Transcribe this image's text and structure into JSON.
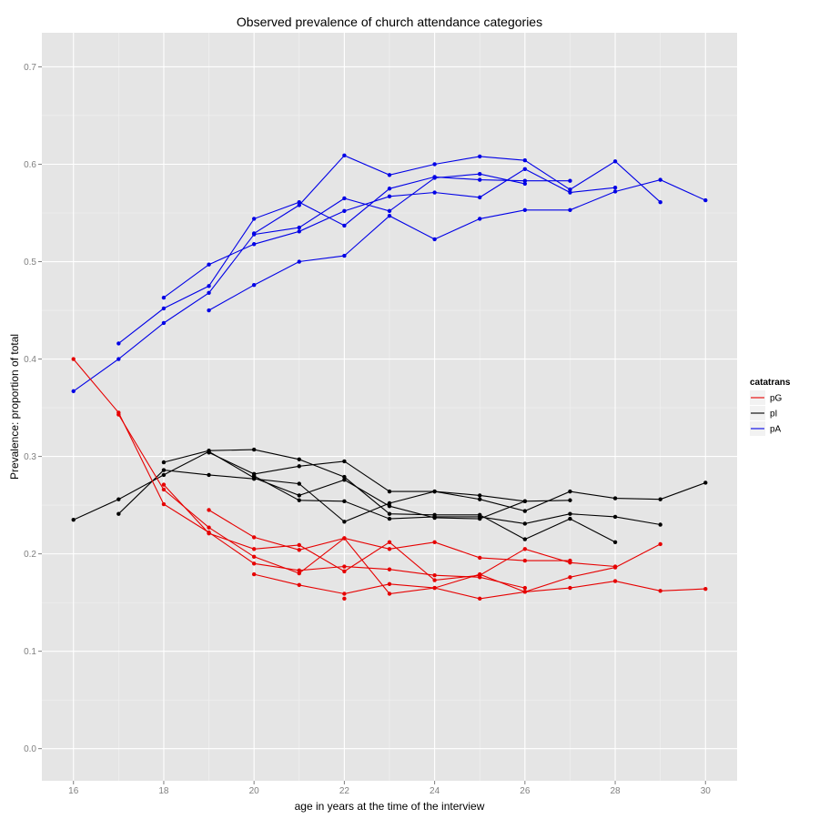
{
  "chart_data": {
    "type": "line",
    "title": "Observed prevalence of church attendance categories",
    "xlabel": "age in years at the time of the interview",
    "ylabel": "Prevalence: proportion of total",
    "xlim": [
      15.3,
      30.7
    ],
    "ylim": [
      -0.033,
      0.735
    ],
    "x_ticks": [
      16,
      18,
      20,
      22,
      24,
      26,
      28,
      30
    ],
    "y_ticks": [
      0.0,
      0.1,
      0.2,
      0.3,
      0.4,
      0.5,
      0.6,
      0.7
    ],
    "y_tick_labels": [
      "0.0",
      "0.1",
      "0.2",
      "0.3",
      "0.4",
      "0.5",
      "0.6",
      "0.7"
    ],
    "grid": true,
    "legend": {
      "title": "catatrans",
      "position": "right",
      "entries": [
        {
          "label": "pG",
          "color": "#e60000"
        },
        {
          "label": "pI",
          "color": "#000000"
        },
        {
          "label": "pA",
          "color": "#0000e6"
        }
      ]
    },
    "series": [
      {
        "group": "pA",
        "color": "#0000e6",
        "x": [
          16,
          17,
          18,
          19,
          20,
          21,
          22,
          23,
          24,
          25,
          26
        ],
        "y": [
          0.367,
          0.4,
          0.437,
          0.468,
          0.528,
          0.535,
          0.565,
          0.552,
          0.586,
          0.59,
          0.58
        ]
      },
      {
        "group": "pA",
        "color": "#0000e6",
        "x": [
          17,
          18,
          19,
          20,
          21,
          22,
          23,
          24,
          25,
          26,
          27
        ],
        "y": [
          0.416,
          0.452,
          0.475,
          0.544,
          0.561,
          0.537,
          0.575,
          0.587,
          0.584,
          0.583,
          0.583
        ]
      },
      {
        "group": "pA",
        "color": "#0000e6",
        "x": [
          18,
          19,
          20,
          21,
          22,
          23,
          24,
          25,
          26,
          27,
          28
        ],
        "y": [
          0.463,
          0.497,
          0.518,
          0.531,
          0.552,
          0.567,
          0.571,
          0.566,
          0.595,
          0.571,
          0.576
        ]
      },
      {
        "group": "pA",
        "color": "#0000e6",
        "x": [
          19,
          20,
          21,
          22,
          23,
          24,
          25,
          26,
          27,
          28,
          29,
          30
        ],
        "y": [
          0.45,
          0.476,
          0.5,
          0.506,
          0.547,
          0.523,
          0.544,
          0.553,
          0.553,
          0.572,
          0.584,
          0.563
        ]
      },
      {
        "group": "pA",
        "color": "#0000e6",
        "x": [
          20,
          21,
          22,
          23,
          24,
          25,
          26,
          27,
          28,
          29
        ],
        "y": [
          0.529,
          0.558,
          0.609,
          0.589,
          0.6,
          0.608,
          0.604,
          0.574,
          0.603,
          0.561
        ]
      },
      {
        "group": "pI",
        "color": "#000000",
        "x": [
          16,
          17,
          18,
          19,
          20,
          21,
          22,
          23,
          24,
          25,
          26
        ],
        "y": [
          0.235,
          0.256,
          0.281,
          0.305,
          0.278,
          0.26,
          0.276,
          0.249,
          0.237,
          0.236,
          0.254
        ]
      },
      {
        "group": "pI",
        "color": "#000000",
        "x": [
          17,
          18,
          19,
          20,
          21,
          22,
          23,
          24,
          25,
          26,
          27
        ],
        "y": [
          0.241,
          0.286,
          0.281,
          0.277,
          0.272,
          0.233,
          0.252,
          0.264,
          0.26,
          0.254,
          0.255
        ]
      },
      {
        "group": "pI",
        "color": "#000000",
        "x": [
          18,
          19,
          20,
          21,
          22,
          23,
          24,
          25,
          26,
          27,
          28
        ],
        "y": [
          0.294,
          0.306,
          0.307,
          0.297,
          0.279,
          0.241,
          0.24,
          0.24,
          0.215,
          0.236,
          0.212
        ]
      },
      {
        "group": "pI",
        "color": "#000000",
        "x": [
          19,
          20,
          21,
          22,
          23,
          24,
          25,
          26,
          27,
          28,
          29,
          30
        ],
        "y": [
          0.304,
          0.282,
          0.29,
          0.295,
          0.264,
          0.264,
          0.256,
          0.244,
          0.264,
          0.257,
          0.256,
          0.273
        ]
      },
      {
        "group": "pI",
        "color": "#000000",
        "x": [
          20,
          21,
          22,
          23,
          24,
          25,
          26,
          27,
          28,
          29
        ],
        "y": [
          0.28,
          0.255,
          0.254,
          0.236,
          0.238,
          0.238,
          0.231,
          0.241,
          0.238,
          0.23
        ]
      },
      {
        "group": "pG",
        "color": "#e60000",
        "x": [
          16,
          17,
          18,
          19,
          20,
          21,
          22,
          23,
          24,
          25,
          26
        ],
        "y": [
          0.4,
          0.345,
          0.251,
          0.222,
          0.19,
          0.183,
          0.187,
          0.184,
          0.178,
          0.176,
          0.165
        ]
      },
      {
        "group": "pG",
        "color": "#e60000",
        "x": [
          17,
          18,
          19,
          20,
          21,
          22,
          23,
          24,
          25,
          26,
          27
        ],
        "y": [
          0.343,
          0.266,
          0.227,
          0.197,
          0.18,
          0.216,
          0.205,
          0.212,
          0.196,
          0.193,
          0.193
        ]
      },
      {
        "group": "pG",
        "color": "#e60000",
        "x": [
          18,
          19,
          20,
          21,
          22,
          23,
          24,
          25,
          26,
          27,
          28
        ],
        "y": [
          0.271,
          0.221,
          0.205,
          0.209,
          0.182,
          0.212,
          0.173,
          0.178,
          0.205,
          0.191,
          0.187
        ]
      },
      {
        "group": "pG",
        "color": "#e60000",
        "x": [
          19,
          20,
          21,
          22,
          23,
          24,
          25,
          26,
          27,
          28,
          29,
          30
        ],
        "y": [
          0.245,
          0.217,
          0.204,
          0.216,
          0.159,
          0.165,
          0.154,
          0.161,
          0.165,
          0.172,
          0.162,
          0.164
        ]
      },
      {
        "group": "pG",
        "color": "#e60000",
        "x": [
          20,
          21,
          22,
          23,
          24,
          25,
          26,
          27,
          28,
          29
        ],
        "y": [
          0.179,
          0.168,
          0.159,
          0.169,
          0.165,
          0.179,
          0.161,
          0.176,
          0.186,
          0.21
        ]
      },
      {
        "group": "pG",
        "color": "#e60000",
        "x": [
          22
        ],
        "y": [
          0.154
        ]
      }
    ]
  }
}
